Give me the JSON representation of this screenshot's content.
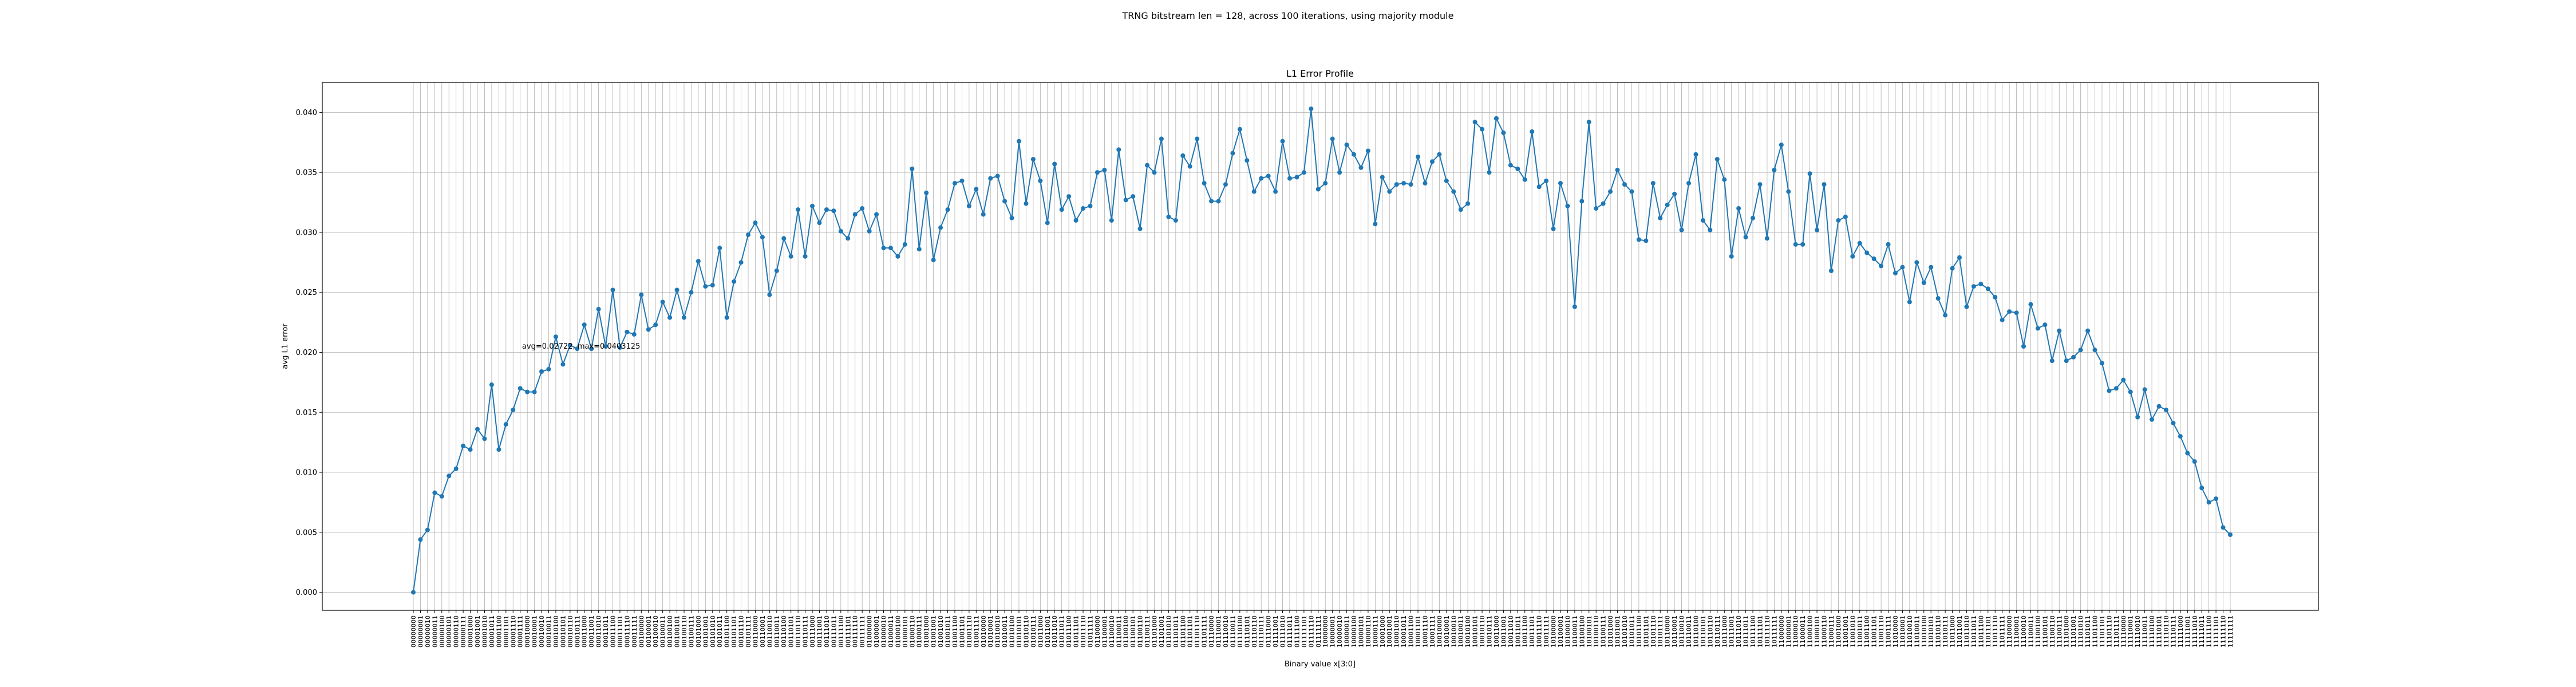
{
  "figure": {
    "suptitle": "TRNG bitstream len = 128, across 100 iterations, using majority module"
  },
  "chart_data": {
    "type": "line",
    "title": "L1 Error Profile",
    "xlabel": "Binary value x[3:0]",
    "ylabel": "avg L1 error",
    "annotation": "avg=0.02722, max=0.0403125",
    "ylim": [
      -0.0015,
      0.0425
    ],
    "yticks": [
      0.0,
      0.005,
      0.01,
      0.015,
      0.02,
      0.025,
      0.03,
      0.035,
      0.04
    ],
    "ytick_labels": [
      "0.000",
      "0.005",
      "0.010",
      "0.015",
      "0.020",
      "0.025",
      "0.030",
      "0.035",
      "0.040"
    ],
    "grid": true,
    "marker": "circle",
    "color": "#1f77b4",
    "x_format": "binary-8bit",
    "x_start": 0,
    "count": 256,
    "values": [
      0.0,
      0.0044,
      0.0052,
      0.0083,
      0.008,
      0.0097,
      0.0103,
      0.0122,
      0.0119,
      0.0136,
      0.0128,
      0.0173,
      0.0119,
      0.014,
      0.0152,
      0.017,
      0.0167,
      0.0167,
      0.0184,
      0.0186,
      0.0213,
      0.019,
      0.0206,
      0.0203,
      0.0223,
      0.0203,
      0.0236,
      0.0205,
      0.0252,
      0.0204,
      0.0217,
      0.0215,
      0.0248,
      0.0219,
      0.0223,
      0.0242,
      0.0229,
      0.0252,
      0.0229,
      0.025,
      0.0276,
      0.0255,
      0.0256,
      0.0287,
      0.0229,
      0.0259,
      0.0275,
      0.0298,
      0.0308,
      0.0296,
      0.0248,
      0.0268,
      0.0295,
      0.028,
      0.0319,
      0.028,
      0.0322,
      0.0308,
      0.0319,
      0.0318,
      0.0301,
      0.0295,
      0.0315,
      0.032,
      0.0301,
      0.0315,
      0.0287,
      0.0287,
      0.028,
      0.029,
      0.0353,
      0.0286,
      0.0333,
      0.0277,
      0.0304,
      0.0319,
      0.0341,
      0.0343,
      0.0322,
      0.0336,
      0.0315,
      0.0345,
      0.0347,
      0.0326,
      0.0312,
      0.0376,
      0.0324,
      0.0361,
      0.0343,
      0.0308,
      0.0357,
      0.0319,
      0.033,
      0.031,
      0.032,
      0.0322,
      0.035,
      0.0352,
      0.031,
      0.0369,
      0.0327,
      0.033,
      0.0303,
      0.0356,
      0.035,
      0.0378,
      0.0313,
      0.031,
      0.0364,
      0.0355,
      0.0378,
      0.0341,
      0.0326,
      0.0326,
      0.034,
      0.0366,
      0.0386,
      0.036,
      0.0334,
      0.0345,
      0.0347,
      0.0334,
      0.0376,
      0.0345,
      0.0346,
      0.035,
      0.0403,
      0.0336,
      0.0341,
      0.0378,
      0.035,
      0.0373,
      0.0365,
      0.0354,
      0.0368,
      0.0307,
      0.0346,
      0.0334,
      0.034,
      0.0341,
      0.034,
      0.0363,
      0.0341,
      0.0359,
      0.0365,
      0.0343,
      0.0334,
      0.0319,
      0.0324,
      0.0392,
      0.0386,
      0.035,
      0.0395,
      0.0383,
      0.0356,
      0.0353,
      0.0344,
      0.0384,
      0.0338,
      0.0343,
      0.0303,
      0.0341,
      0.0322,
      0.0238,
      0.0326,
      0.0392,
      0.032,
      0.0324,
      0.0334,
      0.0352,
      0.034,
      0.0334,
      0.0294,
      0.0293,
      0.0341,
      0.0312,
      0.0323,
      0.0332,
      0.0302,
      0.0341,
      0.0365,
      0.031,
      0.0302,
      0.0361,
      0.0344,
      0.028,
      0.032,
      0.0296,
      0.0312,
      0.034,
      0.0295,
      0.0352,
      0.0373,
      0.0334,
      0.029,
      0.029,
      0.0349,
      0.0302,
      0.034,
      0.0268,
      0.031,
      0.0313,
      0.028,
      0.0291,
      0.0283,
      0.0278,
      0.0272,
      0.029,
      0.0266,
      0.0271,
      0.0242,
      0.0275,
      0.0258,
      0.0271,
      0.0245,
      0.0231,
      0.027,
      0.0279,
      0.0238,
      0.0255,
      0.0257,
      0.0253,
      0.0246,
      0.0227,
      0.0234,
      0.0233,
      0.0205,
      0.024,
      0.022,
      0.0223,
      0.0193,
      0.0218,
      0.0193,
      0.0196,
      0.0202,
      0.0218,
      0.0202,
      0.0191,
      0.0168,
      0.017,
      0.0177,
      0.0167,
      0.0146,
      0.0169,
      0.0144,
      0.0155,
      0.0152,
      0.0141,
      0.013,
      0.0116,
      0.0109,
      0.0087,
      0.0075,
      0.0078,
      0.0054,
      0.0048
    ]
  }
}
